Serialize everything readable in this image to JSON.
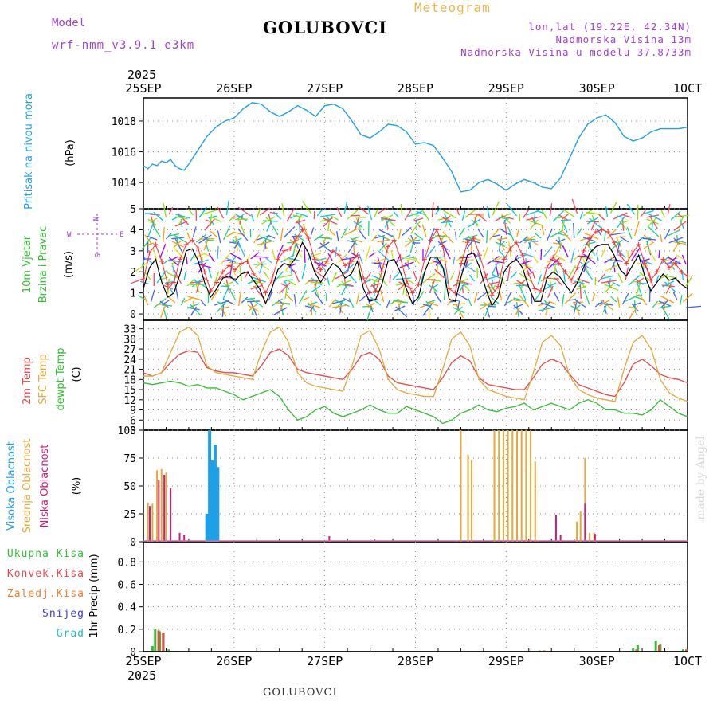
{
  "header": {
    "model_label": "Model",
    "model_value": "wrf-nmm_v3.9.1 e3km",
    "title": "GOLUBOVCI",
    "meteogram_label": "Meteogram",
    "coords": "lon,lat (19.22E, 42.34N)",
    "elevation": "Nadmorska Visina 13m",
    "model_elevation": "Nadmorska Visina u modelu 37.8733m"
  },
  "footer": {
    "title": "GOLUBOVCI",
    "credit": "made by Angel"
  },
  "colors": {
    "pressure": "#1ea0e6",
    "speed": "#000000",
    "temp2m": "#e84848",
    "sfc": "#e6a838",
    "dew": "#2ec02e",
    "high": "#1ea0e6",
    "mid": "#e6a838",
    "low": "#c81e78",
    "total": "#2ec02e",
    "conv": "#e84848",
    "frozen": "#f08030",
    "snow": "#3a3ae0",
    "hail": "#20c0c0"
  },
  "chart_data": [
    {
      "type": "line",
      "id": "pressure",
      "title": "Pritisak na nivou mora",
      "ylabel": "(hPa)",
      "ylim": [
        1012.3,
        1019.5
      ],
      "yticks": [
        1014,
        1016,
        1018
      ],
      "x_days": [
        "25SEP",
        "26SEP",
        "27SEP",
        "28SEP",
        "29SEP",
        "30SEP",
        "1OCT"
      ],
      "top_year": "2025",
      "series": [
        {
          "name": "Pressure",
          "x": [
            0,
            0.05,
            0.1,
            0.15,
            0.2,
            0.25,
            0.3,
            0.35,
            0.4,
            0.45,
            0.5,
            0.6,
            0.7,
            0.8,
            0.9,
            1.0,
            1.1,
            1.2,
            1.3,
            1.4,
            1.5,
            1.6,
            1.7,
            1.8,
            1.9,
            2.0,
            2.1,
            2.2,
            2.3,
            2.4,
            2.5,
            2.6,
            2.7,
            2.8,
            2.9,
            3.0,
            3.1,
            3.2,
            3.3,
            3.4,
            3.5,
            3.6,
            3.7,
            3.8,
            3.9,
            4.0,
            4.1,
            4.2,
            4.3,
            4.4,
            4.5,
            4.6,
            4.7,
            4.8,
            4.9,
            5.0,
            5.1,
            5.2,
            5.3,
            5.4,
            5.5,
            5.6,
            5.7,
            5.8,
            5.9,
            6.0
          ],
          "values": [
            1015.1,
            1014.9,
            1015.2,
            1015.1,
            1015.4,
            1015.3,
            1015.5,
            1015.1,
            1014.9,
            1014.8,
            1015.2,
            1016.1,
            1017.0,
            1017.6,
            1018.0,
            1018.2,
            1018.8,
            1019.2,
            1019.1,
            1018.6,
            1018.3,
            1018.6,
            1019.0,
            1018.7,
            1018.3,
            1019.0,
            1019.1,
            1018.8,
            1018.0,
            1017.1,
            1016.9,
            1017.3,
            1017.8,
            1017.7,
            1017.3,
            1016.5,
            1016.6,
            1016.4,
            1015.6,
            1014.7,
            1013.4,
            1013.5,
            1014.0,
            1014.2,
            1013.9,
            1013.5,
            1013.9,
            1014.2,
            1014.0,
            1013.7,
            1013.6,
            1014.3,
            1015.6,
            1016.9,
            1017.8,
            1018.2,
            1018.4,
            1017.9,
            1017.0,
            1016.7,
            1016.9,
            1017.3,
            1017.5,
            1017.5,
            1017.5,
            1017.6
          ]
        }
      ]
    },
    {
      "type": "line",
      "id": "wind",
      "title": "10m Vjetar",
      "title2": "Brzina i Pravac",
      "ylabel": "(m/s)",
      "ylim": [
        -0.3,
        5
      ],
      "yticks": [
        0,
        1,
        2,
        3,
        4,
        5
      ],
      "legend": [
        "N",
        "W",
        "E",
        "S"
      ],
      "series": [
        {
          "name": "Wind speed",
          "values": [
            1.2,
            2.2,
            2.6,
            1.5,
            0.8,
            1.0,
            1.9,
            3.0,
            3.1,
            2.5,
            1.5,
            0.8,
            1.2,
            1.7,
            1.8,
            1.6,
            1.9,
            2.0,
            1.6,
            1.2,
            0.5,
            1.2,
            2.1,
            2.4,
            2.3,
            2.7,
            3.4,
            2.9,
            2.0,
            1.5,
            2.0,
            2.4,
            2.2,
            1.7,
            1.9,
            2.5,
            1.2,
            0.6,
            0.7,
            1.4,
            2.5,
            2.6,
            2.0,
            1.2,
            0.5,
            0.8,
            2.0,
            2.7,
            2.7,
            2.2,
            0.7,
            0.6,
            1.8,
            2.8,
            2.9,
            2.2,
            1.2,
            0.4,
            0.8,
            2.0,
            2.4,
            2.6,
            2.2,
            1.3,
            0.6,
            0.6,
            1.7,
            2.0,
            1.8,
            1.4,
            1.0,
            1.5,
            2.2,
            2.9,
            3.2,
            3.3,
            3.3,
            2.8,
            2.1,
            1.8,
            2.3,
            2.8,
            1.8,
            1.1,
            1.5,
            1.9,
            1.6,
            1.7,
            1.4,
            1.2
          ]
        },
        {
          "name": "Gust",
          "values": [
            1.6,
            2.9,
            3.3,
            2.5,
            1.4,
            1.5,
            2.6,
            3.3,
            3.5,
            3.1,
            2.0,
            1.1,
            1.5,
            2.0,
            2.3,
            2.1,
            2.4,
            2.5,
            1.9,
            1.6,
            1.0,
            1.6,
            2.6,
            3.0,
            3.1,
            3.6,
            4.0,
            3.6,
            2.6,
            2.1,
            2.5,
            3.0,
            2.8,
            2.3,
            2.5,
            2.8,
            1.7,
            1.0,
            1.1,
            2.0,
            3.2,
            3.5,
            2.7,
            1.6,
            1.0,
            1.4,
            2.6,
            3.5,
            4.0,
            3.2,
            1.2,
            1.0,
            2.4,
            3.4,
            3.6,
            2.8,
            1.8,
            0.9,
            1.3,
            2.6,
            3.1,
            3.4,
            2.8,
            1.9,
            1.2,
            1.1,
            2.2,
            2.7,
            2.4,
            2.0,
            1.6,
            2.2,
            3.0,
            3.6,
            3.9,
            4.0,
            3.9,
            3.4,
            2.8,
            2.4,
            2.9,
            3.3,
            2.4,
            1.6,
            2.0,
            2.6,
            2.2,
            2.4,
            2.0,
            1.8
          ]
        }
      ]
    },
    {
      "type": "line",
      "id": "temperature",
      "title": "2m Temp",
      "title2": "SFC Temp",
      "title3": "dewpt Temp",
      "ylabel": "(C)",
      "ylim": [
        3,
        35.5
      ],
      "yticks": [
        3,
        6,
        9,
        12,
        15,
        18,
        21,
        24,
        27,
        30,
        33
      ],
      "series": [
        {
          "name": "2m Temp",
          "x": [
            0,
            0.1,
            0.2,
            0.3,
            0.4,
            0.5,
            0.6,
            0.7,
            0.8,
            0.9,
            1.0,
            1.1,
            1.2,
            1.3,
            1.4,
            1.5,
            1.6,
            1.7,
            1.8,
            1.9,
            2.0,
            2.1,
            2.2,
            2.3,
            2.4,
            2.5,
            2.6,
            2.7,
            2.8,
            2.9,
            3.0,
            3.1,
            3.2,
            3.3,
            3.4,
            3.5,
            3.6,
            3.7,
            3.8,
            3.9,
            4.0,
            4.1,
            4.2,
            4.3,
            4.4,
            4.5,
            4.6,
            4.7,
            4.8,
            4.9,
            5.0,
            5.1,
            5.2,
            5.3,
            5.4,
            5.5,
            5.6,
            5.7,
            5.8,
            5.9,
            6.0
          ],
          "values": [
            20,
            19,
            20,
            23,
            25.5,
            26.5,
            26,
            21.5,
            20.5,
            20,
            20,
            19.5,
            19,
            22,
            26,
            27,
            25,
            21,
            20,
            19.5,
            19,
            18.5,
            18,
            21,
            25,
            26,
            24,
            19,
            17,
            16.5,
            16,
            15.5,
            15,
            18.5,
            23,
            25,
            23.5,
            18.5,
            16.5,
            16,
            15.5,
            15,
            15,
            18.5,
            22.5,
            24,
            23,
            19.5,
            16.5,
            15.5,
            14.5,
            13.5,
            13,
            17,
            22.5,
            24,
            22,
            19.5,
            18.5,
            18,
            17
          ]
        },
        {
          "name": "SFC Temp",
          "x": [
            0,
            0.1,
            0.2,
            0.3,
            0.4,
            0.5,
            0.6,
            0.7,
            0.8,
            0.9,
            1.0,
            1.1,
            1.2,
            1.3,
            1.4,
            1.5,
            1.6,
            1.7,
            1.8,
            1.9,
            2.0,
            2.1,
            2.2,
            2.3,
            2.4,
            2.5,
            2.6,
            2.7,
            2.8,
            2.9,
            3.0,
            3.1,
            3.2,
            3.3,
            3.4,
            3.5,
            3.6,
            3.7,
            3.8,
            3.9,
            4.0,
            4.1,
            4.2,
            4.3,
            4.4,
            4.5,
            4.6,
            4.7,
            4.8,
            4.9,
            5.0,
            5.1,
            5.2,
            5.3,
            5.4,
            5.5,
            5.6,
            5.7,
            5.8,
            5.9,
            6.0
          ],
          "values": [
            19,
            19,
            20,
            26,
            32,
            33.5,
            31,
            22,
            20,
            19.5,
            19,
            18.5,
            18,
            26,
            32,
            33.5,
            29,
            20,
            17,
            16,
            15.5,
            15,
            14.5,
            22,
            31,
            32.5,
            27,
            18,
            15,
            14,
            13.5,
            13,
            13,
            21,
            30,
            32,
            28,
            18,
            15,
            14,
            13,
            12.5,
            12,
            20,
            29,
            31,
            28,
            19,
            15,
            13.5,
            12.5,
            12,
            11.5,
            21,
            29,
            31,
            27,
            18,
            14,
            12.5,
            11.5
          ]
        },
        {
          "name": "Dew point",
          "x": [
            0,
            0.1,
            0.2,
            0.3,
            0.4,
            0.5,
            0.6,
            0.7,
            0.8,
            0.9,
            1.0,
            1.1,
            1.2,
            1.3,
            1.4,
            1.5,
            1.6,
            1.7,
            1.8,
            1.9,
            2.0,
            2.1,
            2.2,
            2.3,
            2.4,
            2.5,
            2.6,
            2.7,
            2.8,
            2.9,
            3.0,
            3.1,
            3.2,
            3.3,
            3.4,
            3.5,
            3.6,
            3.7,
            3.8,
            3.9,
            4.0,
            4.1,
            4.2,
            4.3,
            4.4,
            4.5,
            4.6,
            4.7,
            4.8,
            4.9,
            5.0,
            5.1,
            5.2,
            5.3,
            5.4,
            5.5,
            5.6,
            5.7,
            5.8,
            5.9,
            6.0
          ],
          "values": [
            17,
            16.5,
            17,
            17.5,
            17,
            16,
            16.5,
            15.5,
            15.5,
            14.5,
            13.5,
            12,
            13,
            14,
            15,
            13,
            9,
            6,
            7,
            9,
            10,
            8,
            7,
            8,
            9,
            10.5,
            9,
            8,
            8,
            10,
            9,
            8,
            7,
            5,
            6,
            8,
            9,
            10.5,
            9,
            8.5,
            9.5,
            10,
            11,
            9,
            10,
            11,
            10,
            9,
            11,
            12,
            11,
            9,
            9,
            8,
            8,
            7.5,
            9,
            12,
            10,
            8,
            7
          ]
        }
      ]
    },
    {
      "type": "bar",
      "id": "clouds",
      "title": "Visoka Oblacnost",
      "title2": "Srednja Oblacnost",
      "title3": "Niska Oblacnost",
      "ylabel": "(%)",
      "ylim": [
        0,
        100
      ],
      "yticks": [
        0,
        25,
        50,
        75,
        100
      ],
      "series": [
        {
          "name": "High",
          "bars": [
            [
              0.7,
              25
            ],
            [
              0.73,
              100
            ],
            [
              0.76,
              73
            ],
            [
              0.79,
              87
            ],
            [
              0.82,
              67
            ]
          ]
        },
        {
          "name": "Mid",
          "bars": [
            [
              0.05,
              35
            ],
            [
              0.1,
              34
            ],
            [
              0.15,
              64
            ],
            [
              0.2,
              65
            ],
            [
              0.25,
              62
            ],
            [
              3.5,
              100
            ],
            [
              3.58,
              78
            ],
            [
              3.62,
              73
            ],
            [
              3.87,
              100
            ],
            [
              3.92,
              100
            ],
            [
              3.97,
              100
            ],
            [
              4.02,
              100
            ],
            [
              4.07,
              100
            ],
            [
              4.12,
              100
            ],
            [
              4.17,
              100
            ],
            [
              4.22,
              100
            ],
            [
              4.27,
              100
            ],
            [
              4.32,
              72
            ],
            [
              4.78,
              18
            ],
            [
              4.82,
              27
            ],
            [
              4.87,
              75
            ],
            [
              4.92,
              8
            ],
            [
              4.97,
              8
            ]
          ]
        },
        {
          "name": "Low",
          "bars": [
            [
              0.07,
              32
            ],
            [
              0.17,
              55
            ],
            [
              0.23,
              60
            ],
            [
              0.3,
              48
            ],
            [
              0.4,
              8
            ],
            [
              0.45,
              6
            ],
            [
              2.05,
              5
            ],
            [
              2.55,
              2
            ],
            [
              3.45,
              1
            ],
            [
              3.92,
              1
            ],
            [
              4.35,
              1
            ],
            [
              4.55,
              24
            ],
            [
              4.6,
              6
            ],
            [
              4.87,
              34
            ],
            [
              4.98,
              7
            ]
          ]
        }
      ]
    },
    {
      "type": "bar",
      "id": "precipitation",
      "title": "Ukupna Kisa",
      "title2": "Konvek.Kisa",
      "title3": "Zaledj.Kisa",
      "title4": "Snijeg",
      "title5": "Grad",
      "ylabel": "1hr Precip (mm)",
      "ylim": [
        0,
        0.98
      ],
      "yticks": [
        0,
        0.2,
        0.4,
        0.6,
        0.8
      ],
      "ytick_labels": [
        "0",
        "0.2",
        "0.4",
        "0.6",
        "0.8"
      ],
      "bottom_year": "2025",
      "series": [
        {
          "name": "Total",
          "bars": [
            [
              0.1,
              0.05
            ],
            [
              0.13,
              0.2
            ],
            [
              0.18,
              0.18
            ],
            [
              0.22,
              0.17
            ],
            [
              0.28,
              0.02
            ],
            [
              4.37,
              0.01
            ],
            [
              4.42,
              0.01
            ],
            [
              5.4,
              0.03
            ],
            [
              5.45,
              0.06
            ],
            [
              5.65,
              0.1
            ],
            [
              5.7,
              0.07
            ],
            [
              5.95,
              0.02
            ]
          ]
        },
        {
          "name": "Convective",
          "bars": [
            [
              0.15,
              0.19
            ],
            [
              0.2,
              0.17
            ],
            [
              4.4,
              0.01
            ],
            [
              5.42,
              0.02
            ],
            [
              5.67,
              0.06
            ],
            [
              5.97,
              0.02
            ]
          ]
        }
      ]
    }
  ]
}
